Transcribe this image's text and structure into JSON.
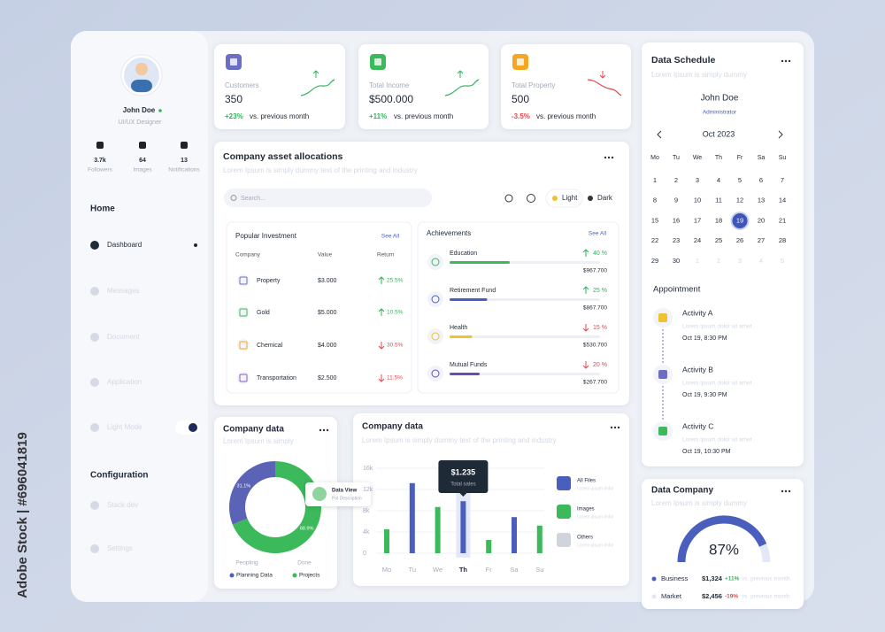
{
  "watermark": "Adobe Stock | #696041819",
  "profile": {
    "name": "John Doe",
    "role": "UI/UX Designer",
    "stats": [
      {
        "value": "3.7k",
        "label": "Followers"
      },
      {
        "value": "64",
        "label": "Images"
      },
      {
        "value": "13",
        "label": "Notifications"
      }
    ]
  },
  "nav": {
    "home_title": "Home",
    "home_items": [
      "Dashboard",
      "Messages",
      "Document",
      "Application",
      "Light Mode"
    ],
    "config_title": "Configuration",
    "config_items": [
      "Stack dev",
      "Settings"
    ]
  },
  "stat_cards": [
    {
      "label": "Customers",
      "value": "350",
      "change": "+23%",
      "trend": "up",
      "note": "vs. previous month",
      "color": "#6a6fc4"
    },
    {
      "label": "Total Income",
      "value": "$500.000",
      "change": "+11%",
      "trend": "up",
      "note": "vs. previous month",
      "color": "#3cb95b"
    },
    {
      "label": "Total Property",
      "value": "500",
      "change": "-3.5%",
      "trend": "down",
      "note": "vs. previous month",
      "color": "#f5a623"
    }
  ],
  "assets": {
    "title": "Company asset allocations",
    "subtitle": "Lorem Ipsum is simply dummy text of the printing and industry",
    "search_placeholder": "Search...",
    "light": "Light",
    "dark": "Dark",
    "investment": {
      "title": "Popular Investment",
      "see_all": "See All",
      "headers": [
        "Company",
        "Value",
        "Return"
      ],
      "rows": [
        [
          "Property",
          "$3.000",
          "25.5%"
        ],
        [
          "Gold",
          "$5.000",
          "10.5%"
        ],
        [
          "Chemical",
          "$4.000",
          "30.5%"
        ],
        [
          "Transportation",
          "$2.500",
          "11.5%"
        ]
      ],
      "trends": [
        "up",
        "up",
        "down",
        "down"
      ],
      "icon_colors": [
        "#6a6fc4",
        "#3cb95b",
        "#f5a623",
        "#8a5cc4"
      ]
    },
    "achievements": {
      "title": "Achievements",
      "see_all": "See All",
      "items": [
        {
          "name": "Education",
          "value": 40,
          "value_label": "40 %",
          "amount": "$967.700",
          "color": "#3cb95b",
          "trend": "up"
        },
        {
          "name": "Retirement Fund",
          "value": 25,
          "value_label": "25 %",
          "amount": "$867.700",
          "color": "#4a5fbd",
          "trend": "up"
        },
        {
          "name": "Health",
          "value": 15,
          "value_label": "15 %",
          "amount": "$530.700",
          "color": "#f2c12e",
          "trend": "down"
        },
        {
          "name": "Mutual Funds",
          "value": 20,
          "value_label": "20 %",
          "amount": "$267.700",
          "color": "#6a4cb8",
          "trend": "down"
        }
      ]
    }
  },
  "donut_card": {
    "title": "Company data",
    "subtitle": "Lorem Ipsum is simply",
    "chart": {
      "type": "pie",
      "values": [
        31.1,
        68.9
      ],
      "value_labels": [
        "31.1%",
        "68.9%"
      ],
      "colors": [
        "#5b63b7",
        "#3cb95b"
      ]
    },
    "tooltip_title": "Data View",
    "tooltip_sub": "Pol Description",
    "labels": [
      "Peopling",
      "Done"
    ],
    "legend": [
      {
        "name": "Planning Data",
        "color": "#4a5fbd"
      },
      {
        "name": "Projects",
        "color": "#3cb95b"
      }
    ]
  },
  "bar_card": {
    "title": "Company data",
    "subtitle": "Lorem Ipsum is simply dummy text of the printing and industry",
    "chart": {
      "type": "bar",
      "categories": [
        "Mo",
        "Tu",
        "We",
        "Th",
        "Fr",
        "Sa",
        "Su"
      ],
      "values": [
        4.5,
        13.2,
        8.7,
        9.8,
        2.5,
        6.8,
        5.2
      ],
      "colors": [
        "#3cb95b",
        "#4a5fbd",
        "#3cb95b",
        "#4a5fbd",
        "#3cb95b",
        "#4a5fbd",
        "#3cb95b"
      ],
      "ylim": [
        0,
        16
      ],
      "yticks": [
        0,
        {
          "value": 4,
          "label": "4k"
        },
        {
          "value": 8,
          "label": "8k"
        },
        {
          "value": 12,
          "label": "12k"
        },
        {
          "value": 16,
          "label": "16k"
        }
      ],
      "grid": true,
      "highlight_index": 3,
      "tooltip_value": "$1.235",
      "tooltip_label": "Total sales"
    },
    "legend": [
      {
        "name": "All Files",
        "note": "Lorem ipsum dolor",
        "color": "#4a5fbd"
      },
      {
        "name": "Images",
        "note": "Lorem ipsum dolor",
        "color": "#3cb95b"
      },
      {
        "name": "Others",
        "note": "Lorem ipsum dolor",
        "color": "#d0d4dc"
      }
    ]
  },
  "schedule": {
    "title": "Data Schedule",
    "subtitle": "Lorem Ipsum is simply dummy",
    "user": "John Doe",
    "user_role": "Administrator",
    "month": "Oct 2023",
    "weekdays": [
      "Mo",
      "Tu",
      "We",
      "Th",
      "Fr",
      "Sa",
      "Su"
    ],
    "weeks": [
      [
        1,
        2,
        3,
        4,
        5,
        6,
        7
      ],
      [
        8,
        9,
        10,
        11,
        12,
        13,
        14
      ],
      [
        15,
        16,
        17,
        18,
        19,
        20,
        21
      ],
      [
        22,
        23,
        24,
        25,
        26,
        27,
        28
      ],
      [
        29,
        30
      ]
    ],
    "next_days": [
      1,
      2,
      3,
      4,
      5
    ],
    "selected": 19,
    "appointment_title": "Appointment",
    "appointments": [
      {
        "name": "Activity A",
        "note": "Lorem ipsum dolor sit amet",
        "time": "Oct 19, 8:30 PM",
        "color": "#f2c12e"
      },
      {
        "name": "Activity B",
        "note": "Lorem ipsum dolor sit amet",
        "time": "Oct 19, 9:30 PM",
        "color": "#6a6fc4"
      },
      {
        "name": "Activity C",
        "note": "Lorem ipsum dolor sit amet",
        "time": "Oct 19, 10:30 PM",
        "color": "#3cb95b"
      }
    ]
  },
  "data_company": {
    "title": "Data Company",
    "subtitle": "Lorem Ipsum is simply dummy",
    "gauge": {
      "type": "gauge",
      "value": 87,
      "value_label": "87%",
      "color": "#4a5fbd"
    },
    "rows": [
      {
        "name": "Business",
        "amount": "$1,324",
        "change": "+11%",
        "trend": "up",
        "note": "vs. previous month",
        "color": "#4a5fbd"
      },
      {
        "name": "Market",
        "amount": "$2,456",
        "change": "-19%",
        "trend": "down",
        "note": "vs. previous month",
        "color": "#e3e7ef"
      }
    ]
  }
}
